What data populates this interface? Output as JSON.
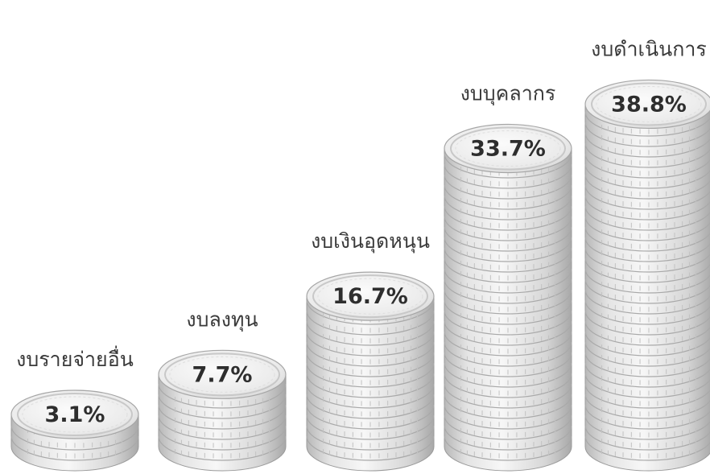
{
  "chart_data": {
    "type": "bar",
    "categories": [
      "งบรายจ่ายอื่น",
      "งบลงทุน",
      "งบเงินอุดหนุน",
      "งบบุคลากร",
      "งบดำเนินการ"
    ],
    "values": [
      3.1,
      7.7,
      16.7,
      33.7,
      38.8
    ],
    "value_labels": [
      "3.1%",
      "7.7%",
      "16.7%",
      "33.7%",
      "38.8%"
    ],
    "unit": "%",
    "ylim": [
      0,
      40
    ],
    "grid": false,
    "legend": "none",
    "colors": {
      "coin_face": "#ededed",
      "coin_edge": "#cfcfcf",
      "coin_shadow": "#9a9a9a",
      "ridge": "#bdbdbd",
      "label_text": "#3a3a3a",
      "value_text": "#2e2e2e"
    }
  }
}
